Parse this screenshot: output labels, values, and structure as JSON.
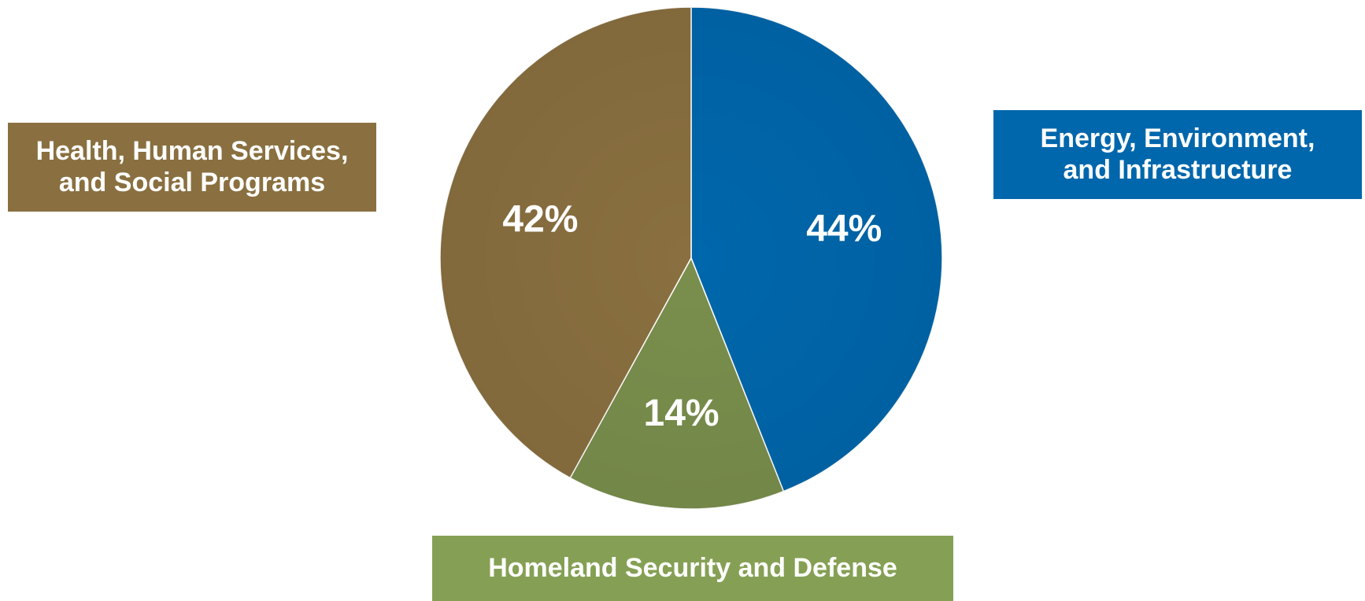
{
  "chart_data": {
    "type": "pie",
    "slices": [
      {
        "label": "Energy, Environment,\nand Infrastructure",
        "value": 44,
        "value_label": "44%",
        "color": "#0067AC"
      },
      {
        "label": "Homeland Security and Defense",
        "value": 14,
        "value_label": "14%",
        "color": "#7A8F4D"
      },
      {
        "label": "Health, Human Services,\nand Social Programs",
        "value": 42,
        "value_label": "42%",
        "color": "#8A7040"
      }
    ],
    "start_angle_deg": 0,
    "direction": "clockwise"
  },
  "legend": {
    "health": {
      "text": "Health, Human Services,\nand Social Programs",
      "color": "#8A7040"
    },
    "energy": {
      "text": "Energy, Environment,\nand Infrastructure",
      "color": "#0067AC"
    },
    "defense": {
      "text": "Homeland Security and Defense",
      "color": "#85A054"
    }
  }
}
